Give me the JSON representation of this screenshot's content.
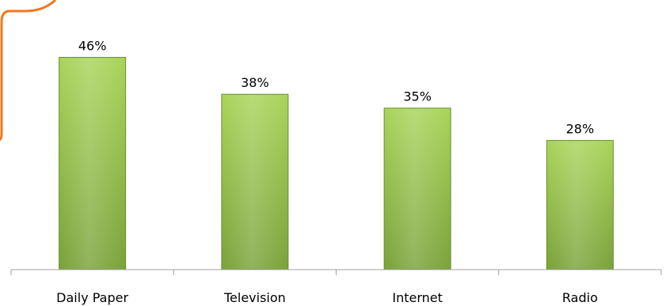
{
  "chart_data": {
    "type": "bar",
    "categories": [
      "Daily Paper",
      "Television",
      "Internet",
      "Radio"
    ],
    "values": [
      46,
      38,
      35,
      28
    ],
    "value_labels": [
      "46%",
      "38%",
      "35%",
      "28%"
    ],
    "unit": "%",
    "title": "",
    "xlabel": "",
    "ylabel": "",
    "ylim": [
      0,
      55
    ],
    "grid": false,
    "legend": "none"
  },
  "colors": {
    "bar_top": "#a9d45a",
    "bar_bottom": "#7aa23a",
    "bar_edge": "#6b8f30",
    "axis": "#a0a0a0",
    "callout_border": "#f07820"
  }
}
